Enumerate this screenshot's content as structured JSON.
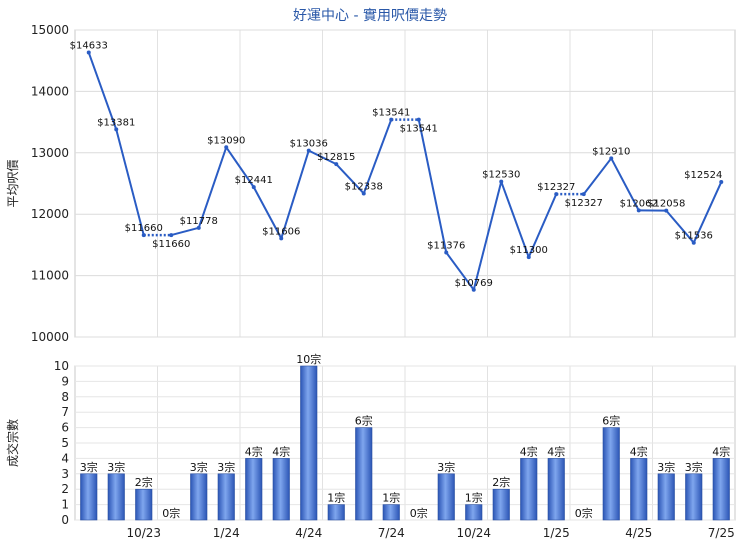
{
  "title": "好運中心 - 實用呎價走勢",
  "chart_data": [
    {
      "type": "line",
      "ylabel": "平均呎價",
      "ylim": [
        10000,
        15000
      ],
      "yticks": [
        "10000",
        "11000",
        "12000",
        "13000",
        "14000",
        "15000"
      ],
      "grid": true,
      "line_color": "#2a5cc4",
      "series": [
        {
          "values": [
            14633,
            13381,
            11660,
            11660,
            11778,
            13090,
            12441,
            11606,
            13036,
            12815,
            12338,
            13541,
            13541,
            11376,
            10769,
            12530,
            11300,
            12327,
            12327,
            12910,
            12062,
            12058,
            11536,
            12524
          ],
          "labels": [
            "$14633",
            "$13381",
            "$11660",
            "$11660",
            "$11778",
            "$13090",
            "$12441",
            "$11606",
            "$13036",
            "$12815",
            "$12338",
            "$13541",
            "$13541",
            "$11376",
            "$10769",
            "$12530",
            "$11300",
            "$12327",
            "$12327",
            "$12910",
            "$12062",
            "$12058",
            "$11536",
            "$12524"
          ],
          "carried": [
            false,
            false,
            false,
            true,
            false,
            false,
            false,
            false,
            false,
            false,
            false,
            false,
            true,
            false,
            false,
            false,
            false,
            false,
            true,
            false,
            false,
            false,
            false,
            false
          ]
        }
      ]
    },
    {
      "type": "bar",
      "ylabel": "成交宗數",
      "ylim": [
        0,
        10
      ],
      "yticks": [
        "0",
        "1",
        "2",
        "3",
        "4",
        "5",
        "6",
        "7",
        "8",
        "9",
        "10"
      ],
      "grid": true,
      "bar_color": "#3f6fcf",
      "xticks": [
        "10/23",
        "1/24",
        "4/24",
        "7/24",
        "10/24",
        "1/25",
        "4/25",
        "7/25"
      ],
      "series": [
        {
          "values": [
            3,
            3,
            2,
            0,
            3,
            3,
            4,
            4,
            10,
            1,
            6,
            1,
            0,
            3,
            1,
            2,
            4,
            4,
            0,
            6,
            4,
            3,
            3,
            4
          ],
          "labels": [
            "3宗",
            "3宗",
            "2宗",
            "0宗",
            "3宗",
            "3宗",
            "4宗",
            "4宗",
            "10宗",
            "1宗",
            "6宗",
            "1宗",
            "0宗",
            "3宗",
            "1宗",
            "2宗",
            "4宗",
            "4宗",
            "0宗",
            "6宗",
            "4宗",
            "3宗",
            "3宗",
            "4宗"
          ]
        }
      ]
    }
  ]
}
